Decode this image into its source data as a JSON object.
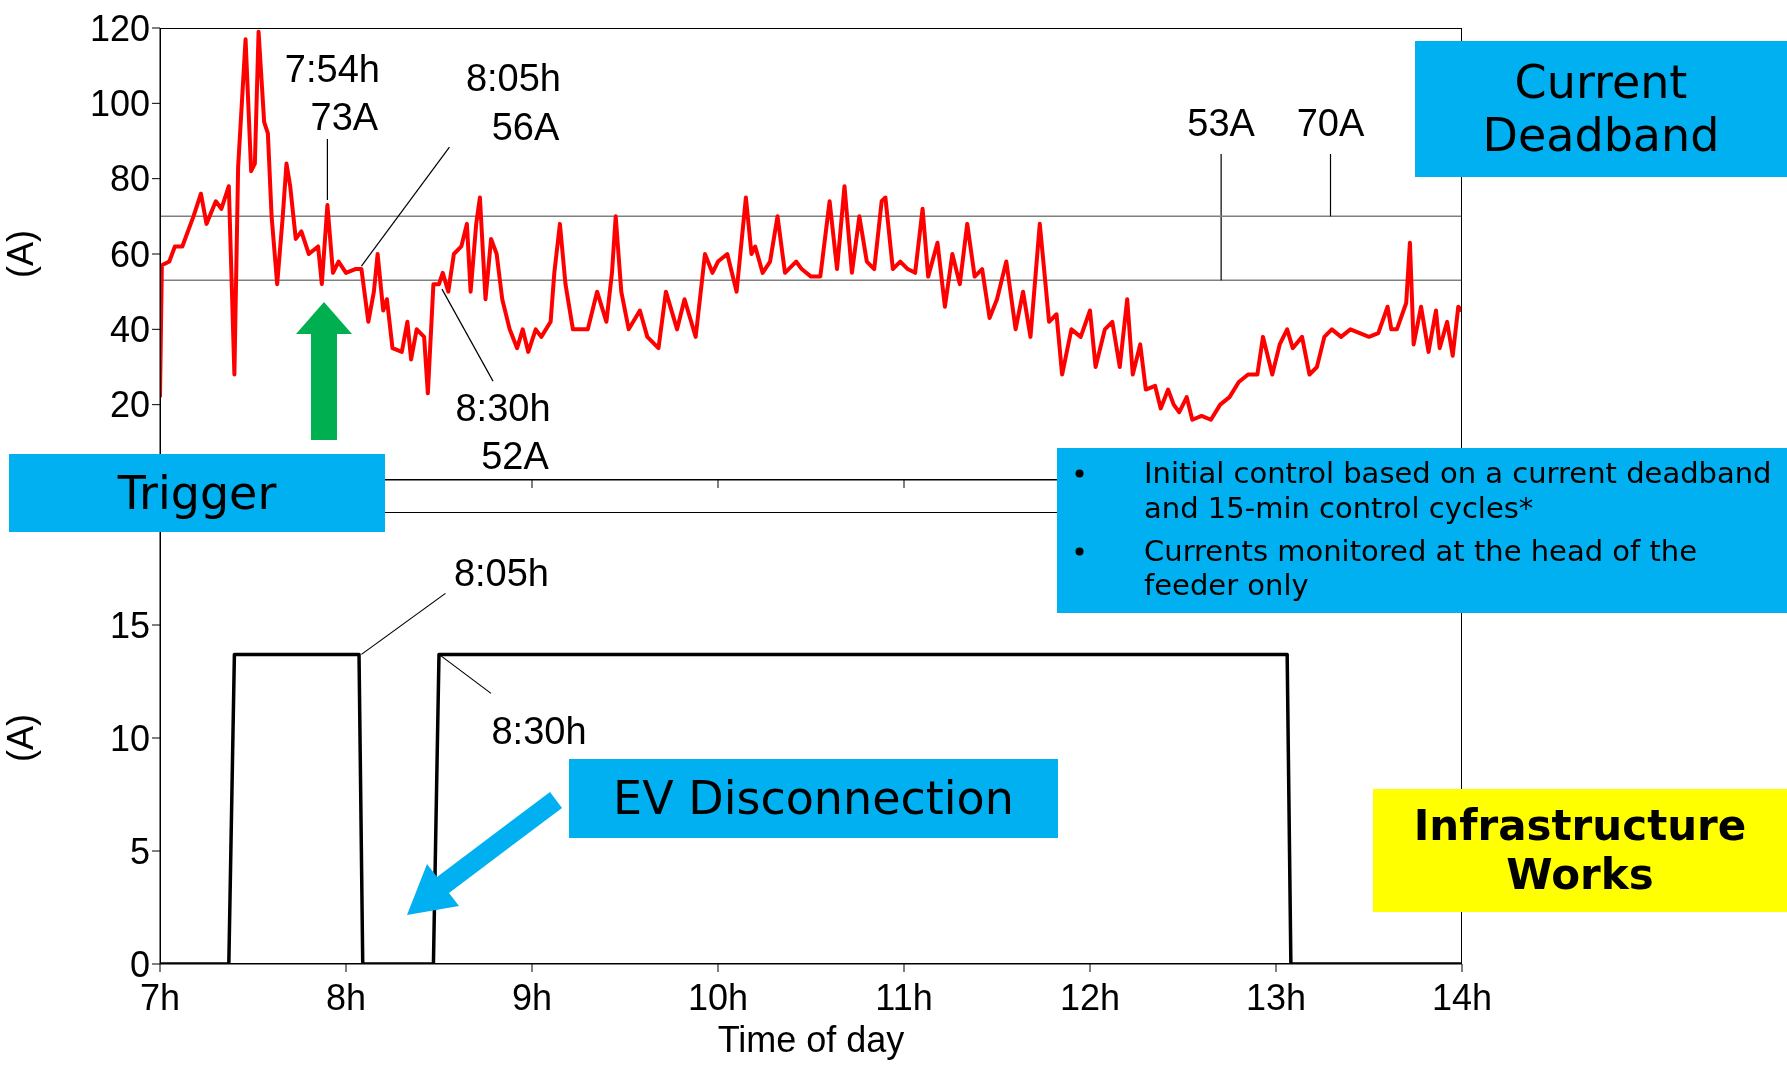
{
  "chart_data": [
    {
      "type": "line",
      "ylabel": "(A)",
      "xlim": [
        7,
        14
      ],
      "xticks": [
        7,
        8,
        9,
        10,
        11,
        12,
        13,
        14
      ],
      "ylim": [
        0,
        120
      ],
      "yticks": [
        20,
        40,
        60,
        80,
        100,
        120
      ],
      "tick_labels": "y",
      "marker": "none",
      "line_style": "solid",
      "x": [
        7.0,
        7.01,
        7.05,
        7.08,
        7.12,
        7.18,
        7.22,
        7.25,
        7.3,
        7.33,
        7.37,
        7.4,
        7.42,
        7.46,
        7.49,
        7.51,
        7.53,
        7.56,
        7.58,
        7.6,
        7.63,
        7.66,
        7.68,
        7.7,
        7.73,
        7.76,
        7.8,
        7.85,
        7.87,
        7.9,
        7.93,
        7.96,
        8.0,
        8.05,
        8.083,
        8.12,
        8.15,
        8.17,
        8.2,
        8.22,
        8.25,
        8.3,
        8.33,
        8.35,
        8.38,
        8.42,
        8.44,
        8.47,
        8.5,
        8.52,
        8.55,
        8.58,
        8.62,
        8.65,
        8.67,
        8.7,
        8.72,
        8.75,
        8.78,
        8.81,
        8.84,
        8.88,
        8.92,
        8.95,
        8.98,
        9.02,
        9.05,
        9.1,
        9.12,
        9.15,
        9.18,
        9.22,
        9.3,
        9.35,
        9.4,
        9.43,
        9.45,
        9.48,
        9.52,
        9.58,
        9.62,
        9.68,
        9.72,
        9.78,
        9.82,
        9.88,
        9.93,
        9.97,
        10.0,
        10.05,
        10.1,
        10.15,
        10.18,
        10.2,
        10.24,
        10.28,
        10.32,
        10.36,
        10.42,
        10.45,
        10.5,
        10.55,
        10.6,
        10.64,
        10.68,
        10.72,
        10.76,
        10.8,
        10.84,
        10.88,
        10.9,
        10.94,
        10.98,
        11.02,
        11.06,
        11.1,
        11.13,
        11.18,
        11.22,
        11.26,
        11.3,
        11.34,
        11.38,
        11.42,
        11.46,
        11.5,
        11.55,
        11.6,
        11.64,
        11.68,
        11.73,
        11.78,
        11.82,
        11.85,
        11.9,
        11.95,
        12.0,
        12.03,
        12.08,
        12.12,
        12.16,
        12.2,
        12.23,
        12.27,
        12.3,
        12.35,
        12.38,
        12.42,
        12.45,
        12.48,
        12.52,
        12.55,
        12.6,
        12.65,
        12.7,
        12.75,
        12.8,
        12.85,
        12.9,
        12.93,
        12.98,
        13.02,
        13.06,
        13.09,
        13.14,
        13.18,
        13.22,
        13.26,
        13.3,
        13.35,
        13.4,
        13.45,
        13.5,
        13.55,
        13.6,
        13.62,
        13.65,
        13.7,
        13.72,
        13.74,
        13.78,
        13.82,
        13.86,
        13.88,
        13.92,
        13.95,
        13.98,
        14.0
      ],
      "series": [
        {
          "color": "#ff0000",
          "values": [
            22,
            57,
            58,
            62,
            62,
            70,
            76,
            68,
            74,
            72,
            78,
            28,
            83,
            117,
            82,
            84,
            119,
            95,
            92,
            70,
            52,
            70,
            84,
            78,
            64,
            66,
            60,
            62,
            52,
            73,
            55,
            58,
            55,
            56,
            56,
            42,
            50,
            60,
            45,
            48,
            35,
            34,
            42,
            32,
            40,
            38,
            23,
            52,
            52,
            55,
            50,
            60,
            62,
            68,
            50,
            68,
            75,
            48,
            64,
            60,
            48,
            40,
            35,
            40,
            34,
            40,
            38,
            42,
            55,
            68,
            52,
            40,
            40,
            50,
            42,
            55,
            70,
            50,
            40,
            45,
            38,
            35,
            50,
            40,
            48,
            38,
            60,
            55,
            58,
            60,
            50,
            75,
            60,
            62,
            55,
            58,
            70,
            55,
            58,
            56,
            54,
            54,
            74,
            56,
            78,
            55,
            70,
            58,
            56,
            74,
            75,
            56,
            58,
            56,
            55,
            72,
            54,
            63,
            46,
            60,
            52,
            68,
            54,
            56,
            43,
            48,
            58,
            40,
            50,
            38,
            68,
            42,
            44,
            28,
            40,
            38,
            45,
            30,
            40,
            42,
            30,
            48,
            28,
            36,
            24,
            25,
            19,
            24,
            20,
            18,
            22,
            16,
            17,
            16,
            20,
            22,
            26,
            28,
            28,
            38,
            28,
            36,
            40,
            35,
            38,
            28,
            30,
            38,
            40,
            38,
            40,
            39,
            38,
            39,
            46,
            40,
            40,
            47,
            63,
            36,
            46,
            34,
            45,
            35,
            42,
            33,
            46,
            45
          ]
        }
      ],
      "ref_lines": [
        {
          "axis": "y",
          "value": 53,
          "label": "53A",
          "color": "#808080"
        },
        {
          "axis": "y",
          "value": 70,
          "label": "70A",
          "color": "#808080"
        }
      ],
      "annotations": [
        {
          "text": "7:54h\n73A",
          "x": 7.9,
          "y": 73
        },
        {
          "text": "8:05h\n56A",
          "x": 8.083,
          "y": 56
        },
        {
          "text": "8:30h\n52A",
          "x": 8.5,
          "y": 52
        },
        "Current Deadband",
        "Trigger",
        "Initial control based on a current deadband and 15-min control cycles*",
        "Currents monitored at the head of the feeder only"
      ]
    },
    {
      "type": "line",
      "xlabel": "Time of day",
      "ylabel": "(A)",
      "xlim": [
        7,
        14
      ],
      "xticks": [
        {
          "value": 7,
          "label": "7h"
        },
        {
          "value": 8,
          "label": "8h"
        },
        {
          "value": 9,
          "label": "9h"
        },
        {
          "value": 10,
          "label": "10h"
        },
        {
          "value": 11,
          "label": "11h"
        },
        {
          "value": 12,
          "label": "12h"
        },
        {
          "value": 13,
          "label": "13h"
        },
        {
          "value": 14,
          "label": "14h"
        }
      ],
      "ylim": [
        0,
        20
      ],
      "yticks": [
        0,
        5,
        10,
        15
      ],
      "marker": "none",
      "line_style": "solid",
      "x": [
        7.0,
        7.37,
        7.4,
        8.07,
        8.09,
        8.47,
        8.5,
        13.06,
        13.08,
        14.0
      ],
      "series": [
        {
          "color": "#000000",
          "values": [
            0,
            0,
            13.7,
            13.7,
            0,
            0,
            13.7,
            13.7,
            0,
            0
          ]
        }
      ],
      "annotations": [
        {
          "text": "8:05h",
          "x": 8.083,
          "y": 13.7
        },
        {
          "text": "8:30h",
          "x": 8.5,
          "y": 13.7
        },
        "EV Disconnection",
        "Infrastructure Works"
      ]
    }
  ]
}
